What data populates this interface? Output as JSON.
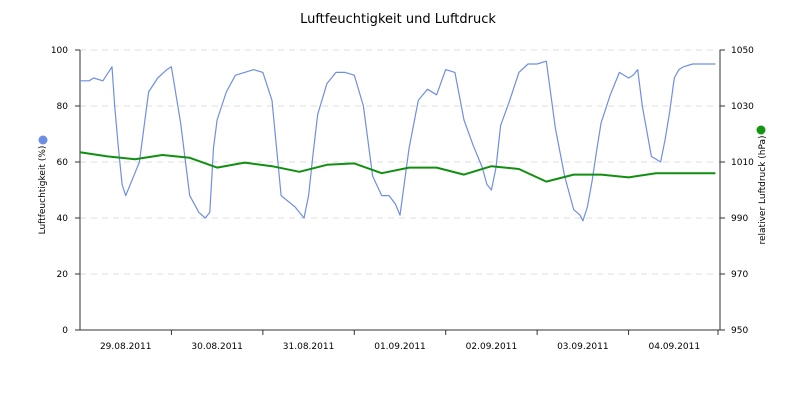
{
  "chart_data": {
    "type": "line",
    "title": "Luftfeuchtigkeit und Luftdruck",
    "x_tick_labels": [
      "29.08.2011",
      "30.08.2011",
      "31.08.2011",
      "01.09.2011",
      "02.09.2011",
      "03.09.2011",
      "04.09.2011"
    ],
    "x_range_days": [
      0,
      7
    ],
    "y_left": {
      "label": "Luftfeuchtigkeit (%)",
      "range": [
        0,
        100
      ],
      "ticks": [
        "0",
        "20",
        "40",
        "60",
        "80",
        "100"
      ]
    },
    "y_right": {
      "label": "relativer Luftdruck (hPa)",
      "range": [
        950,
        1050
      ],
      "ticks": [
        "950",
        "970",
        "990",
        "1010",
        "1030",
        "1050"
      ]
    },
    "grid": true,
    "series": [
      {
        "name": "Luftfeuchtigkeit (%)",
        "axis": "left",
        "color": "#6f8fe0",
        "marker_color": "#6b8de3",
        "x_days": [
          0.0,
          0.1,
          0.15,
          0.25,
          0.35,
          0.38,
          0.42,
          0.46,
          0.5,
          0.55,
          0.6,
          0.65,
          0.75,
          0.85,
          0.95,
          1.0,
          1.1,
          1.2,
          1.3,
          1.37,
          1.42,
          1.46,
          1.5,
          1.6,
          1.7,
          1.8,
          1.9,
          2.0,
          2.1,
          2.2,
          2.35,
          2.4,
          2.45,
          2.5,
          2.55,
          2.6,
          2.7,
          2.8,
          2.9,
          3.0,
          3.1,
          3.2,
          3.3,
          3.38,
          3.45,
          3.5,
          3.6,
          3.7,
          3.8,
          3.9,
          4.0,
          4.1,
          4.2,
          4.3,
          4.4,
          4.45,
          4.5,
          4.55,
          4.6,
          4.7,
          4.8,
          4.9,
          5.0,
          5.1,
          5.2,
          5.3,
          5.4,
          5.47,
          5.5,
          5.55,
          5.6,
          5.65,
          5.7,
          5.8,
          5.9,
          6.0,
          6.05,
          6.1,
          6.15,
          6.25,
          6.35,
          6.4,
          6.45,
          6.5,
          6.55,
          6.6,
          6.7,
          6.8,
          6.95
        ],
        "values": [
          89,
          89,
          90,
          89,
          94,
          80,
          65,
          52,
          48,
          52,
          56,
          60,
          85,
          90,
          93,
          94,
          74,
          48,
          42,
          40,
          42,
          65,
          75,
          85,
          91,
          92,
          93,
          92,
          82,
          48,
          44,
          42,
          40,
          48,
          63,
          77,
          88,
          92,
          92,
          91,
          80,
          55,
          48,
          48,
          45,
          41,
          65,
          82,
          86,
          84,
          93,
          92,
          75,
          66,
          58,
          52,
          50,
          58,
          73,
          82,
          92,
          95,
          95,
          96,
          72,
          55,
          43,
          41,
          39,
          44,
          53,
          64,
          74,
          84,
          92,
          90,
          91,
          93,
          80,
          62,
          60,
          68,
          78,
          90,
          93,
          94,
          95,
          95,
          95
        ]
      },
      {
        "name": "relativer Luftdruck (hPa)",
        "axis": "right",
        "color": "#118f11",
        "marker_color": "#149614",
        "x_days": [
          0.0,
          0.3,
          0.6,
          0.9,
          1.2,
          1.5,
          1.8,
          2.1,
          2.4,
          2.7,
          3.0,
          3.3,
          3.6,
          3.9,
          4.2,
          4.5,
          4.8,
          5.1,
          5.4,
          5.7,
          6.0,
          6.3,
          6.6,
          6.95
        ],
        "values": [
          1013.5,
          1012,
          1011,
          1012.5,
          1011.5,
          1008,
          1009.8,
          1008.5,
          1006.5,
          1009,
          1009.5,
          1006,
          1008,
          1008,
          1005.5,
          1008.5,
          1007.5,
          1003,
          1005.5,
          1005.5,
          1004.5,
          1006,
          1006,
          1006
        ]
      }
    ]
  }
}
